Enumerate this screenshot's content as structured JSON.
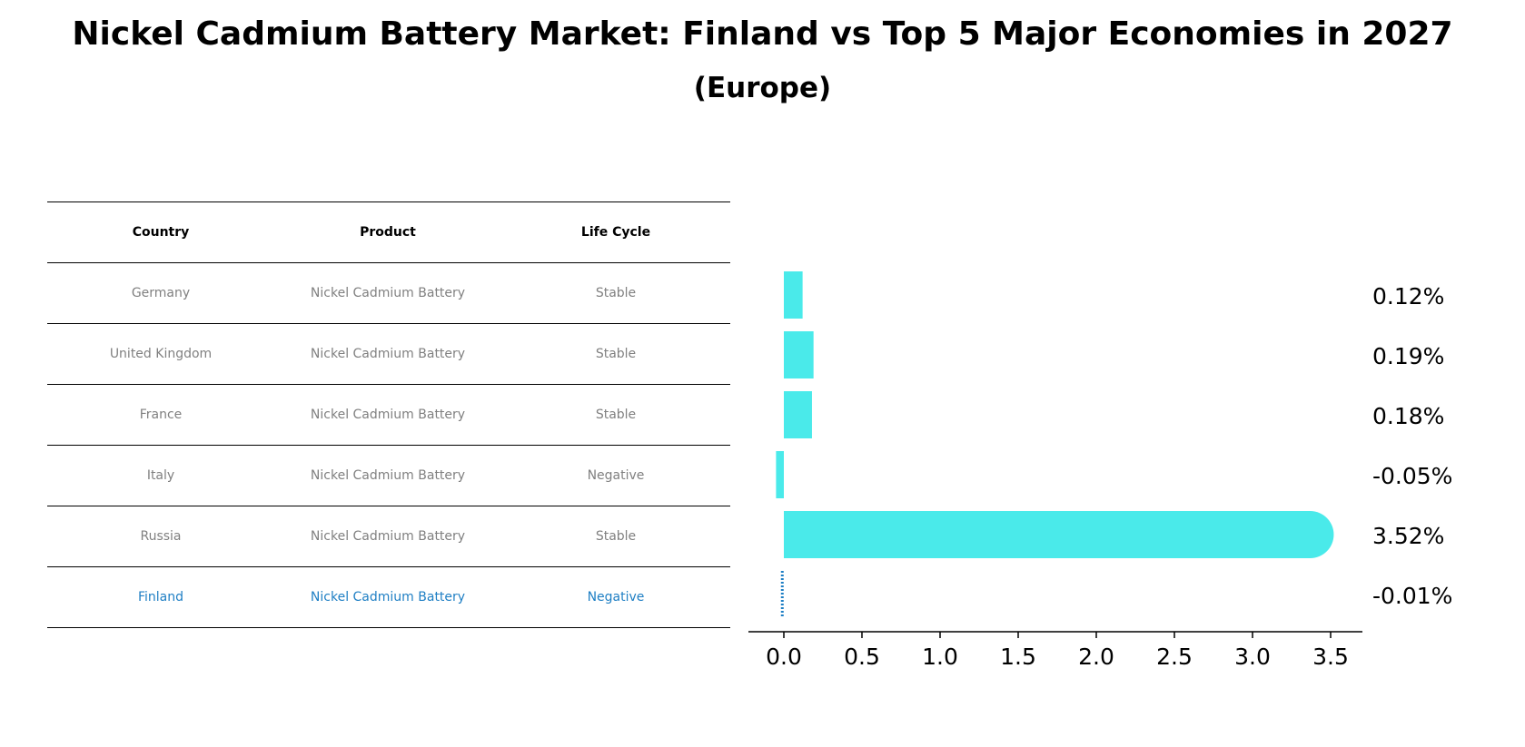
{
  "title": "Nickel Cadmium Battery Market: Finland vs Top 5 Major Economies in 2027",
  "subtitle": "(Europe)",
  "table": {
    "headers": [
      "Country",
      "Product",
      "Life Cycle"
    ],
    "rows": [
      {
        "country": "Germany",
        "product": "Nickel Cadmium Battery",
        "life_cycle": "Stable"
      },
      {
        "country": "United Kingdom",
        "product": "Nickel Cadmium Battery",
        "life_cycle": "Stable"
      },
      {
        "country": "France",
        "product": "Nickel Cadmium Battery",
        "life_cycle": "Stable"
      },
      {
        "country": "Italy",
        "product": "Nickel Cadmium Battery",
        "life_cycle": "Negative"
      },
      {
        "country": "Russia",
        "product": "Nickel Cadmium Battery",
        "life_cycle": "Stable"
      },
      {
        "country": "Finland",
        "product": "Nickel Cadmium Battery",
        "life_cycle": "Negative"
      }
    ],
    "highlight_country": "Finland",
    "highlight_color": "#1f7fc4",
    "default_text_color": "#808080"
  },
  "chart_data": {
    "type": "bar",
    "orientation": "horizontal",
    "categories": [
      "Germany",
      "United Kingdom",
      "France",
      "Italy",
      "Russia",
      "Finland"
    ],
    "values": [
      0.12,
      0.19,
      0.18,
      -0.05,
      3.52,
      -0.01
    ],
    "value_labels": [
      "0.12%",
      "0.19%",
      "0.18%",
      "-0.05%",
      "3.52%",
      "-0.01%"
    ],
    "xticks": [
      "0.0",
      "0.5",
      "1.0",
      "1.5",
      "2.0",
      "2.5",
      "3.0",
      "3.5"
    ],
    "xlim": [
      -0.23,
      3.7
    ],
    "bar_color": "#4aeaea",
    "highlight_color": "#1f7fc4",
    "xlabel": "",
    "ylabel": "",
    "grid": false,
    "legend": "none"
  }
}
